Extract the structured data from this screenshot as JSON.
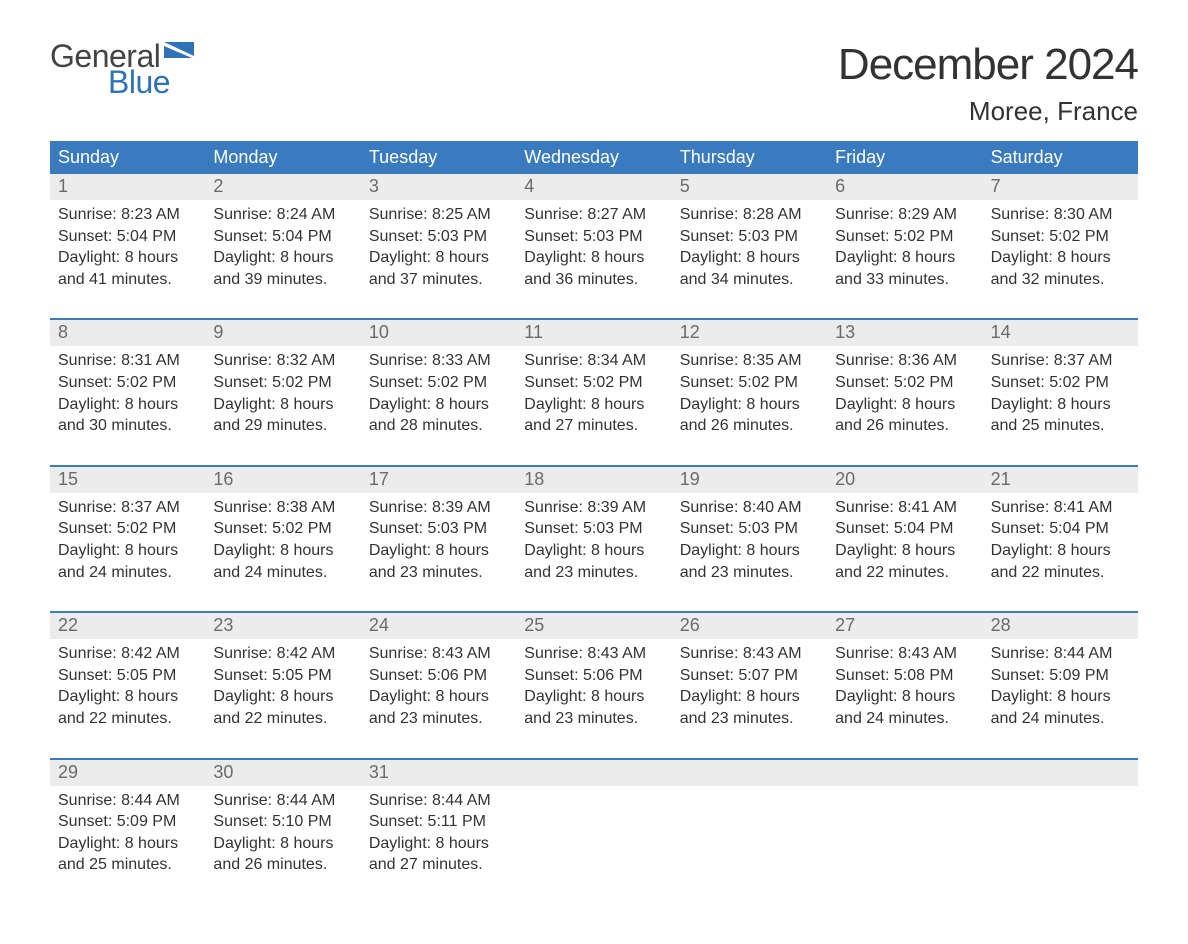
{
  "brand": {
    "part1": "General",
    "part2": "Blue",
    "color_primary": "#2f72b9",
    "color_text": "#444444"
  },
  "title": "December 2024",
  "location": "Moree, France",
  "colors": {
    "header_bg": "#3a7bbf",
    "header_text": "#ffffff",
    "daynum_bg": "#ececec",
    "daynum_text": "#6b6b6b",
    "body_text": "#333333",
    "week_divider": "#3a7bbf",
    "page_bg": "#ffffff"
  },
  "typography": {
    "title_fontsize": 44,
    "location_fontsize": 26,
    "dow_fontsize": 18,
    "daynum_fontsize": 18,
    "cell_fontsize": 16,
    "font_family": "Arial"
  },
  "layout": {
    "columns": 7,
    "rows": 5,
    "cell_lines": 4
  },
  "days_of_week": [
    "Sunday",
    "Monday",
    "Tuesday",
    "Wednesday",
    "Thursday",
    "Friday",
    "Saturday"
  ],
  "weeks": [
    [
      {
        "n": "1",
        "sunrise": "Sunrise: 8:23 AM",
        "sunset": "Sunset: 5:04 PM",
        "d1": "Daylight: 8 hours",
        "d2": "and 41 minutes."
      },
      {
        "n": "2",
        "sunrise": "Sunrise: 8:24 AM",
        "sunset": "Sunset: 5:04 PM",
        "d1": "Daylight: 8 hours",
        "d2": "and 39 minutes."
      },
      {
        "n": "3",
        "sunrise": "Sunrise: 8:25 AM",
        "sunset": "Sunset: 5:03 PM",
        "d1": "Daylight: 8 hours",
        "d2": "and 37 minutes."
      },
      {
        "n": "4",
        "sunrise": "Sunrise: 8:27 AM",
        "sunset": "Sunset: 5:03 PM",
        "d1": "Daylight: 8 hours",
        "d2": "and 36 minutes."
      },
      {
        "n": "5",
        "sunrise": "Sunrise: 8:28 AM",
        "sunset": "Sunset: 5:03 PM",
        "d1": "Daylight: 8 hours",
        "d2": "and 34 minutes."
      },
      {
        "n": "6",
        "sunrise": "Sunrise: 8:29 AM",
        "sunset": "Sunset: 5:02 PM",
        "d1": "Daylight: 8 hours",
        "d2": "and 33 minutes."
      },
      {
        "n": "7",
        "sunrise": "Sunrise: 8:30 AM",
        "sunset": "Sunset: 5:02 PM",
        "d1": "Daylight: 8 hours",
        "d2": "and 32 minutes."
      }
    ],
    [
      {
        "n": "8",
        "sunrise": "Sunrise: 8:31 AM",
        "sunset": "Sunset: 5:02 PM",
        "d1": "Daylight: 8 hours",
        "d2": "and 30 minutes."
      },
      {
        "n": "9",
        "sunrise": "Sunrise: 8:32 AM",
        "sunset": "Sunset: 5:02 PM",
        "d1": "Daylight: 8 hours",
        "d2": "and 29 minutes."
      },
      {
        "n": "10",
        "sunrise": "Sunrise: 8:33 AM",
        "sunset": "Sunset: 5:02 PM",
        "d1": "Daylight: 8 hours",
        "d2": "and 28 minutes."
      },
      {
        "n": "11",
        "sunrise": "Sunrise: 8:34 AM",
        "sunset": "Sunset: 5:02 PM",
        "d1": "Daylight: 8 hours",
        "d2": "and 27 minutes."
      },
      {
        "n": "12",
        "sunrise": "Sunrise: 8:35 AM",
        "sunset": "Sunset: 5:02 PM",
        "d1": "Daylight: 8 hours",
        "d2": "and 26 minutes."
      },
      {
        "n": "13",
        "sunrise": "Sunrise: 8:36 AM",
        "sunset": "Sunset: 5:02 PM",
        "d1": "Daylight: 8 hours",
        "d2": "and 26 minutes."
      },
      {
        "n": "14",
        "sunrise": "Sunrise: 8:37 AM",
        "sunset": "Sunset: 5:02 PM",
        "d1": "Daylight: 8 hours",
        "d2": "and 25 minutes."
      }
    ],
    [
      {
        "n": "15",
        "sunrise": "Sunrise: 8:37 AM",
        "sunset": "Sunset: 5:02 PM",
        "d1": "Daylight: 8 hours",
        "d2": "and 24 minutes."
      },
      {
        "n": "16",
        "sunrise": "Sunrise: 8:38 AM",
        "sunset": "Sunset: 5:02 PM",
        "d1": "Daylight: 8 hours",
        "d2": "and 24 minutes."
      },
      {
        "n": "17",
        "sunrise": "Sunrise: 8:39 AM",
        "sunset": "Sunset: 5:03 PM",
        "d1": "Daylight: 8 hours",
        "d2": "and 23 minutes."
      },
      {
        "n": "18",
        "sunrise": "Sunrise: 8:39 AM",
        "sunset": "Sunset: 5:03 PM",
        "d1": "Daylight: 8 hours",
        "d2": "and 23 minutes."
      },
      {
        "n": "19",
        "sunrise": "Sunrise: 8:40 AM",
        "sunset": "Sunset: 5:03 PM",
        "d1": "Daylight: 8 hours",
        "d2": "and 23 minutes."
      },
      {
        "n": "20",
        "sunrise": "Sunrise: 8:41 AM",
        "sunset": "Sunset: 5:04 PM",
        "d1": "Daylight: 8 hours",
        "d2": "and 22 minutes."
      },
      {
        "n": "21",
        "sunrise": "Sunrise: 8:41 AM",
        "sunset": "Sunset: 5:04 PM",
        "d1": "Daylight: 8 hours",
        "d2": "and 22 minutes."
      }
    ],
    [
      {
        "n": "22",
        "sunrise": "Sunrise: 8:42 AM",
        "sunset": "Sunset: 5:05 PM",
        "d1": "Daylight: 8 hours",
        "d2": "and 22 minutes."
      },
      {
        "n": "23",
        "sunrise": "Sunrise: 8:42 AM",
        "sunset": "Sunset: 5:05 PM",
        "d1": "Daylight: 8 hours",
        "d2": "and 22 minutes."
      },
      {
        "n": "24",
        "sunrise": "Sunrise: 8:43 AM",
        "sunset": "Sunset: 5:06 PM",
        "d1": "Daylight: 8 hours",
        "d2": "and 23 minutes."
      },
      {
        "n": "25",
        "sunrise": "Sunrise: 8:43 AM",
        "sunset": "Sunset: 5:06 PM",
        "d1": "Daylight: 8 hours",
        "d2": "and 23 minutes."
      },
      {
        "n": "26",
        "sunrise": "Sunrise: 8:43 AM",
        "sunset": "Sunset: 5:07 PM",
        "d1": "Daylight: 8 hours",
        "d2": "and 23 minutes."
      },
      {
        "n": "27",
        "sunrise": "Sunrise: 8:43 AM",
        "sunset": "Sunset: 5:08 PM",
        "d1": "Daylight: 8 hours",
        "d2": "and 24 minutes."
      },
      {
        "n": "28",
        "sunrise": "Sunrise: 8:44 AM",
        "sunset": "Sunset: 5:09 PM",
        "d1": "Daylight: 8 hours",
        "d2": "and 24 minutes."
      }
    ],
    [
      {
        "n": "29",
        "sunrise": "Sunrise: 8:44 AM",
        "sunset": "Sunset: 5:09 PM",
        "d1": "Daylight: 8 hours",
        "d2": "and 25 minutes."
      },
      {
        "n": "30",
        "sunrise": "Sunrise: 8:44 AM",
        "sunset": "Sunset: 5:10 PM",
        "d1": "Daylight: 8 hours",
        "d2": "and 26 minutes."
      },
      {
        "n": "31",
        "sunrise": "Sunrise: 8:44 AM",
        "sunset": "Sunset: 5:11 PM",
        "d1": "Daylight: 8 hours",
        "d2": "and 27 minutes."
      },
      null,
      null,
      null,
      null
    ]
  ]
}
